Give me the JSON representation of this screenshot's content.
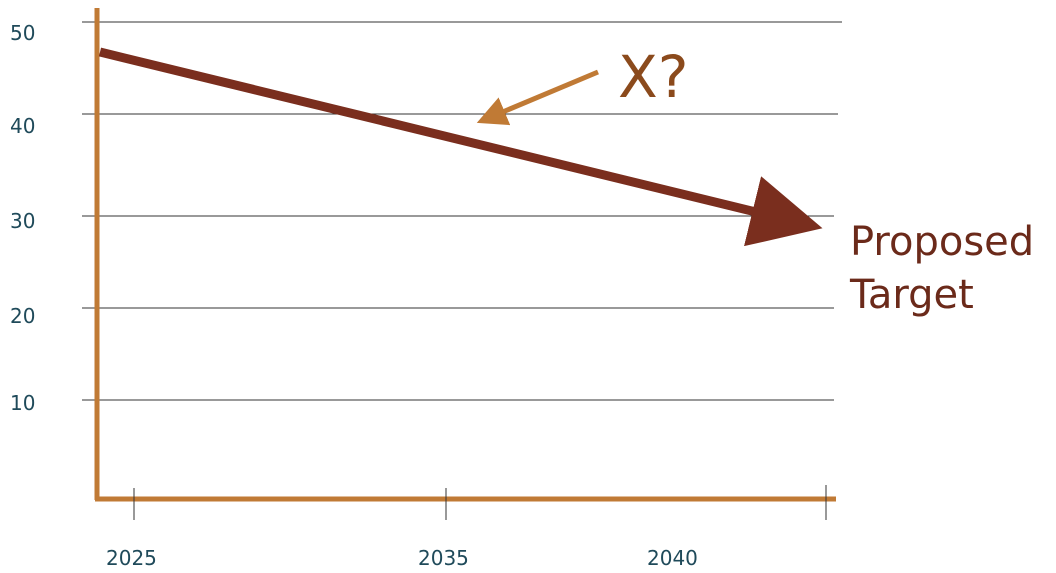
{
  "chart_data": {
    "type": "line",
    "title": "",
    "xlabel": "",
    "ylabel": "",
    "x_ticks": [
      "2025",
      "2035",
      "2040"
    ],
    "y_ticks": [
      "10",
      "20",
      "30",
      "40",
      "50"
    ],
    "ylim": [
      0,
      50
    ],
    "grid": "horizontal",
    "series": [
      {
        "x": [
          "2024",
          "2042"
        ],
        "values": [
          47,
          29
        ]
      }
    ],
    "annotations": {
      "question": "X?",
      "target_line1": "Proposed",
      "target_line2": "Target"
    },
    "colors": {
      "axis": "#c07a35",
      "line": "#7a2e1e",
      "pointer_arrow": "#c07a35",
      "grid": "#333333",
      "tick_text": "#1f4a5a",
      "x_text": "#8b4a1c",
      "target_text": "#6b2a1a"
    }
  }
}
